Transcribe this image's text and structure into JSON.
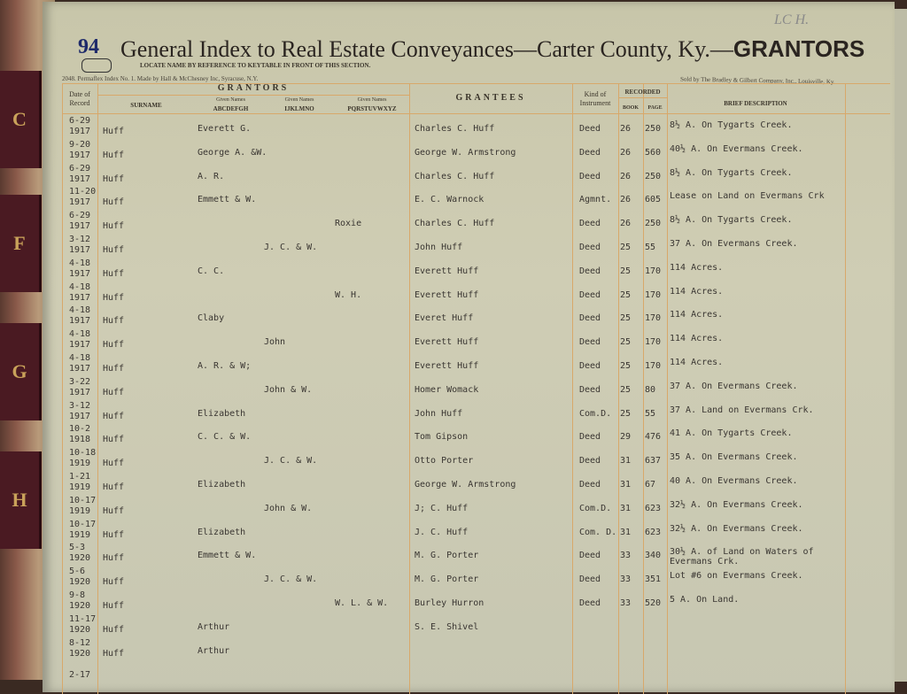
{
  "binding_tabs": [
    "C",
    "F",
    "G",
    "H"
  ],
  "header": {
    "page_number": "94",
    "title": "General Index to Real Estate Conveyances—Carter County, Ky.—",
    "title_strong": "GRANTORS",
    "locate_note": "LOCATE NAME BY REFERENCE TO KEYTABLE IN FRONT OF THIS SECTION.",
    "maker": "2048. Permaflex Index No. 1.  Made by Hall & McChesney Inc, Syracuse, N.Y.",
    "sold_by": "Sold by The Bradley & Gilbert Company, Inc., Louisville, Ky.",
    "handwritten": "LC H."
  },
  "columns": {
    "date": "Date of Record",
    "grantors": "GRANTORS",
    "surname": "SURNAME",
    "given_small": "Given Names",
    "given1": "ABCDEFGH",
    "given2": "IJKLMNO",
    "given3": "PQRSTUVWXYZ",
    "grantees": "GRANTEES",
    "kind": "Kind of Instrument",
    "recorded": "RECORDED",
    "book": "BOOK",
    "page": "PAGE",
    "description": "BRIEF DESCRIPTION"
  },
  "rows": [
    {
      "date": "6-29",
      "year": "1917",
      "surname": "Huff",
      "g1": "Everett G.",
      "g2": "",
      "g3": "",
      "grantee": "Charles C. Huff",
      "kind": "Deed",
      "book": "26",
      "page": "250",
      "desc": "8½ A. On Tygarts Creek."
    },
    {
      "date": "9-20",
      "year": "1917",
      "surname": "Huff",
      "g1": "George A. &W.",
      "g2": "",
      "g3": "",
      "grantee": "George W. Armstrong",
      "kind": "Deed",
      "book": "26",
      "page": "560",
      "desc": "40½ A. On Evermans Creek."
    },
    {
      "date": "6-29",
      "year": "1917",
      "surname": "Huff",
      "g1": "A. R.",
      "g2": "",
      "g3": "",
      "grantee": "Charles C. Huff",
      "kind": "Deed",
      "book": "26",
      "page": "250",
      "desc": "8½ A. On Tygarts Creek."
    },
    {
      "date": "11-20",
      "year": "1917",
      "surname": "Huff",
      "g1": "Emmett & W.",
      "g2": "",
      "g3": "",
      "grantee": "E. C. Warnock",
      "kind": "Agmnt.",
      "book": "26",
      "page": "605",
      "desc": "Lease on Land on Evermans Crk"
    },
    {
      "date": "6-29",
      "year": "1917",
      "surname": "Huff",
      "g1": "",
      "g2": "",
      "g3": "Roxie",
      "grantee": "Charles C. Huff",
      "kind": "Deed",
      "book": "26",
      "page": "250",
      "desc": "8½ A. On Tygarts Creek."
    },
    {
      "date": "3-12",
      "year": "1917",
      "surname": "Huff",
      "g1": "",
      "g2": "J. C. & W.",
      "g3": "",
      "grantee": "John Huff",
      "kind": "Deed",
      "book": "25",
      "page": "55",
      "desc": "37 A. On Evermans Creek."
    },
    {
      "date": "4-18",
      "year": "1917",
      "surname": "Huff",
      "g1": "C. C.",
      "g2": "",
      "g3": "",
      "grantee": "Everett Huff",
      "kind": "Deed",
      "book": "25",
      "page": "170",
      "desc": "114 Acres."
    },
    {
      "date": "4-18",
      "year": "1917",
      "surname": "Huff",
      "g1": "",
      "g2": "",
      "g3": "W. H.",
      "grantee": "Everett Huff",
      "kind": "Deed",
      "book": "25",
      "page": "170",
      "desc": "114 Acres."
    },
    {
      "date": "4-18",
      "year": "1917",
      "surname": "Huff",
      "g1": "Claby",
      "g2": "",
      "g3": "",
      "grantee": "Everet Huff",
      "kind": "Deed",
      "book": "25",
      "page": "170",
      "desc": "114 Acres."
    },
    {
      "date": "4-18",
      "year": "1917",
      "surname": "Huff",
      "g1": "",
      "g2": "John",
      "g3": "",
      "grantee": "Everett Huff",
      "kind": "Deed",
      "book": "25",
      "page": "170",
      "desc": "114 Acres."
    },
    {
      "date": "4-18",
      "year": "1917",
      "surname": "Huff",
      "g1": "A. R. & W;",
      "g2": "",
      "g3": "",
      "grantee": "Everett Huff",
      "kind": "Deed",
      "book": "25",
      "page": "170",
      "desc": "114 Acres."
    },
    {
      "date": "3-22",
      "year": "1917",
      "surname": "Huff",
      "g1": "",
      "g2": "John & W.",
      "g3": "",
      "grantee": "Homer Womack",
      "kind": "Deed",
      "book": "25",
      "page": "80",
      "desc": "37 A. On Evermans Creek."
    },
    {
      "date": "3-12",
      "year": "1917",
      "surname": "Huff",
      "g1": "Elizabeth",
      "g2": "",
      "g3": "",
      "grantee": "John Huff",
      "kind": "Com.D.",
      "book": "25",
      "page": "55",
      "desc": "37 A. Land on Evermans Crk."
    },
    {
      "date": "10-2",
      "year": "1918",
      "surname": "Huff",
      "g1": "C. C. & W.",
      "g2": "",
      "g3": "",
      "grantee": "Tom Gipson",
      "kind": "Deed",
      "book": "29",
      "page": "476",
      "desc": "41 A. On Tygarts Creek."
    },
    {
      "date": "10-18",
      "year": "1919",
      "surname": "Huff",
      "g1": "",
      "g2": "J. C. & W.",
      "g3": "",
      "grantee": "Otto Porter",
      "kind": "Deed",
      "book": "31",
      "page": "637",
      "desc": "35 A. On Evermans Creek."
    },
    {
      "date": "1-21",
      "year": "1919",
      "surname": "Huff",
      "g1": "Elizabeth",
      "g2": "",
      "g3": "",
      "grantee": "George W. Armstrong",
      "kind": "Deed",
      "book": "31",
      "page": "67",
      "desc": "40 A. On Evermans Creek."
    },
    {
      "date": "10-17",
      "year": "1919",
      "surname": "Huff",
      "g1": "",
      "g2": "John & W.",
      "g3": "",
      "grantee": "J; C. Huff",
      "kind": "Com.D.",
      "book": "31",
      "page": "623",
      "desc": "32½ A. On Evermans Creek."
    },
    {
      "date": "10-17",
      "year": "1919",
      "surname": "Huff",
      "g1": "Elizabeth",
      "g2": "",
      "g3": "",
      "grantee": "J. C. Huff",
      "kind": "Com. D.",
      "book": "31",
      "page": "623",
      "desc": "32½ A. On Evermans Creek."
    },
    {
      "date": "5-3",
      "year": "1920",
      "surname": "Huff",
      "g1": "Emmett & W.",
      "g2": "",
      "g3": "",
      "grantee": "M. G. Porter",
      "kind": "Deed",
      "book": "33",
      "page": "340",
      "desc": "30½ A. of Land on Waters of Evermans Crk."
    },
    {
      "date": "5-6",
      "year": "1920",
      "surname": "Huff",
      "g1": "",
      "g2": "J. C. & W.",
      "g3": "",
      "grantee": "M. G. Porter",
      "kind": "Deed",
      "book": "33",
      "page": "351",
      "desc": "Lot #6 on Evermans Creek."
    },
    {
      "date": "9-8",
      "year": "1920",
      "surname": "Huff",
      "g1": "",
      "g2": "",
      "g3": "W. L. & W.",
      "grantee": "Burley Hurron",
      "kind": "Deed",
      "book": "33",
      "page": "520",
      "desc": "5 A. On Land."
    },
    {
      "date": "11-17",
      "year": "1920",
      "surname": "Huff",
      "g1": "Arthur",
      "g2": "",
      "g3": "",
      "grantee": "S. E. Shivel",
      "kind": "",
      "book": "",
      "page": "",
      "desc": ""
    },
    {
      "date": "8-12",
      "year": "1920",
      "surname": "Huff",
      "g1": "Arthur",
      "g2": "",
      "g3": "",
      "grantee": "",
      "kind": "",
      "book": "",
      "page": "",
      "desc": ""
    }
  ],
  "trailing_date": "2-17"
}
